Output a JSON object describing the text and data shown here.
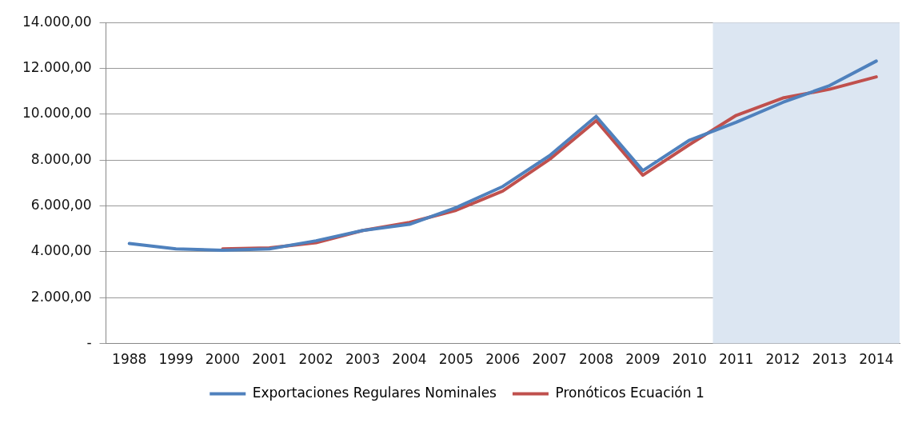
{
  "chart_data": {
    "type": "line",
    "categories": [
      "1988",
      "1999",
      "2000",
      "2001",
      "2002",
      "2003",
      "2004",
      "2005",
      "2006",
      "2007",
      "2008",
      "2009",
      "2010",
      "2011",
      "2012",
      "2013",
      "2014"
    ],
    "series": [
      {
        "name": "Exportaciones Regulares Nominales",
        "color": "#4f81bd",
        "values": [
          4360,
          4130,
          4070,
          4130,
          4480,
          4930,
          5200,
          5930,
          6850,
          8190,
          9910,
          7540,
          8870,
          9650,
          10520,
          11250,
          12320
        ]
      },
      {
        "name": "Pronóticos Ecuación 1",
        "color": "#c0504d",
        "values": [
          null,
          null,
          4130,
          4170,
          4400,
          4930,
          5280,
          5810,
          6650,
          8030,
          9720,
          7340,
          8680,
          9950,
          10710,
          11090,
          11630
        ]
      }
    ],
    "ylim": [
      0,
      14000
    ],
    "yticks": [
      {
        "value": 0,
        "label": "-"
      },
      {
        "value": 2000,
        "label": "2.000,00"
      },
      {
        "value": 4000,
        "label": "4.000,00"
      },
      {
        "value": 6000,
        "label": "6.000,00"
      },
      {
        "value": 8000,
        "label": "8.000,00"
      },
      {
        "value": 10000,
        "label": "10.000,00"
      },
      {
        "value": 12000,
        "label": "12.000,00"
      },
      {
        "value": 14000,
        "label": "14.000,00"
      }
    ],
    "bands": [
      {
        "axis": "x",
        "from": "2011",
        "to": "2014",
        "color": "#dce6f2"
      }
    ],
    "grid": "y",
    "legend": "bottom",
    "marker": "none",
    "line_style": "solid"
  }
}
